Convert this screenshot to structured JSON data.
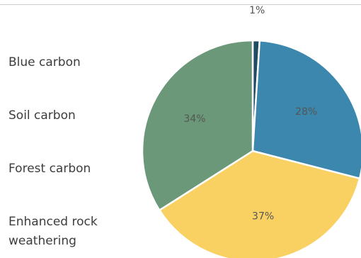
{
  "chart_data": {
    "type": "pie",
    "title": "",
    "slices": [
      {
        "name": "Blue carbon",
        "value": 1,
        "label": "1%",
        "color": "#1f4b63"
      },
      {
        "name": "Soil carbon",
        "value": 28,
        "label": "28%",
        "color": "#3b87ad"
      },
      {
        "name": "Forest carbon",
        "value": 37,
        "label": "37%",
        "color": "#f9d062"
      },
      {
        "name": "Enhanced rock weathering",
        "value": 34,
        "label": "34%",
        "color": "#6a9878"
      }
    ],
    "legend_position": "left",
    "label_color": "#555555",
    "legend_labels": [
      "Blue carbon",
      "Soil carbon",
      "Forest carbon",
      "Enhanced rock",
      "weathering"
    ]
  }
}
